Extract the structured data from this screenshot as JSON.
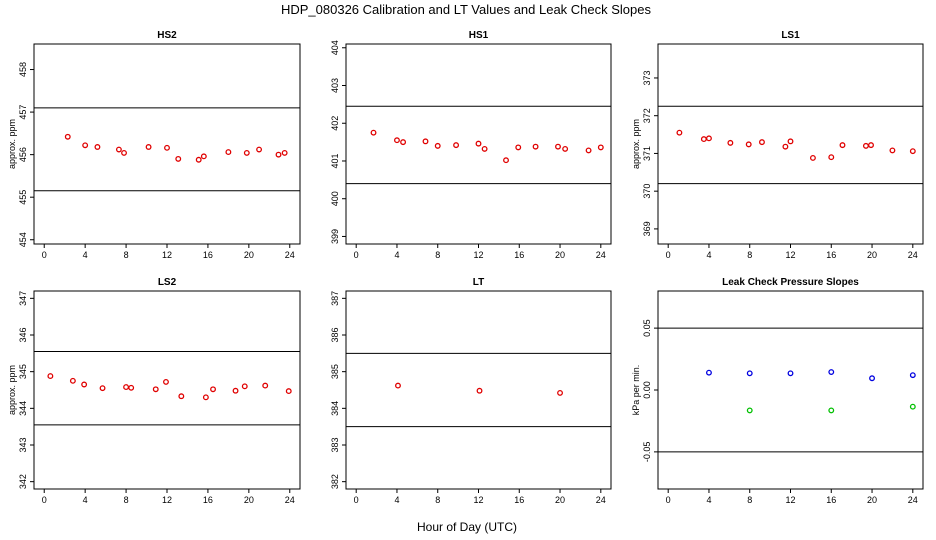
{
  "title": "HDP_080326  Calibration and LT Values and Leak Check Slopes",
  "x_axis_title": "Hour of Day (UTC)",
  "chart_data": [
    {
      "type": "scatter",
      "title": "HS2",
      "ylabel": "approx. ppm",
      "xlim": [
        -1,
        25
      ],
      "ylim": [
        453.9,
        458.6
      ],
      "x_ticks": [
        "0",
        "4",
        "8",
        "12",
        "16",
        "20",
        "24"
      ],
      "y_ticks": [
        "454",
        "455",
        "456",
        "457",
        "458"
      ],
      "reference_lines": [
        457.1,
        455.15
      ],
      "marker_color": "#e00000",
      "series": [
        {
          "x": [
            2.3,
            4.0,
            5.2,
            7.3,
            7.8,
            10.2,
            12.0,
            13.1,
            15.1,
            15.6,
            18.0,
            19.8,
            21.0,
            22.9,
            23.5
          ],
          "y": [
            456.42,
            456.22,
            456.18,
            456.12,
            456.04,
            456.18,
            456.16,
            455.9,
            455.88,
            455.96,
            456.06,
            456.04,
            456.12,
            456.0,
            456.04
          ]
        }
      ]
    },
    {
      "type": "scatter",
      "title": "HS1",
      "ylabel": "",
      "xlim": [
        -1,
        25
      ],
      "ylim": [
        398.8,
        404.1
      ],
      "x_ticks": [
        "0",
        "4",
        "8",
        "12",
        "16",
        "20",
        "24"
      ],
      "y_ticks": [
        "399",
        "400",
        "401",
        "402",
        "403",
        "404"
      ],
      "reference_lines": [
        402.45,
        400.4
      ],
      "marker_color": "#e00000",
      "series": [
        {
          "x": [
            1.7,
            4.0,
            4.6,
            6.8,
            8.0,
            9.8,
            12.0,
            12.6,
            14.7,
            15.9,
            17.6,
            19.8,
            20.5,
            22.8,
            24.0
          ],
          "y": [
            401.75,
            401.55,
            401.5,
            401.52,
            401.4,
            401.42,
            401.46,
            401.32,
            401.02,
            401.36,
            401.38,
            401.38,
            401.32,
            401.28,
            401.36
          ]
        }
      ]
    },
    {
      "type": "scatter",
      "title": "LS1",
      "ylabel": "approx. ppm",
      "xlim": [
        -1,
        25
      ],
      "ylim": [
        368.6,
        373.9
      ],
      "x_ticks": [
        "0",
        "4",
        "8",
        "12",
        "16",
        "20",
        "24"
      ],
      "y_ticks": [
        "369",
        "370",
        "371",
        "372",
        "373"
      ],
      "reference_lines": [
        372.25,
        370.2
      ],
      "marker_color": "#e00000",
      "series": [
        {
          "x": [
            1.1,
            3.5,
            4.0,
            6.1,
            7.9,
            9.2,
            11.5,
            12.0,
            14.2,
            16.0,
            17.1,
            19.4,
            19.9,
            22.0,
            24.0
          ],
          "y": [
            371.55,
            371.38,
            371.4,
            371.28,
            371.24,
            371.3,
            371.18,
            371.32,
            370.88,
            370.9,
            371.22,
            371.2,
            371.22,
            371.08,
            371.06
          ]
        }
      ]
    },
    {
      "type": "scatter",
      "title": "LS2",
      "ylabel": "approx. ppm",
      "xlim": [
        -1,
        25
      ],
      "ylim": [
        341.8,
        347.2
      ],
      "x_ticks": [
        "0",
        "4",
        "8",
        "12",
        "16",
        "20",
        "24"
      ],
      "y_ticks": [
        "342",
        "343",
        "344",
        "345",
        "346",
        "347"
      ],
      "reference_lines": [
        345.55,
        343.55
      ],
      "marker_color": "#e00000",
      "series": [
        {
          "x": [
            0.6,
            2.8,
            3.9,
            5.7,
            8.0,
            8.5,
            10.9,
            11.9,
            13.4,
            15.8,
            16.5,
            18.7,
            19.6,
            21.6,
            23.9
          ],
          "y": [
            344.88,
            344.75,
            344.65,
            344.55,
            344.58,
            344.56,
            344.52,
            344.72,
            344.33,
            344.3,
            344.52,
            344.48,
            344.6,
            344.62,
            344.47
          ]
        }
      ]
    },
    {
      "type": "scatter",
      "title": "LT",
      "ylabel": "",
      "xlim": [
        -1,
        25
      ],
      "ylim": [
        381.8,
        387.2
      ],
      "x_ticks": [
        "0",
        "4",
        "8",
        "12",
        "16",
        "20",
        "24"
      ],
      "y_ticks": [
        "382",
        "383",
        "384",
        "385",
        "386",
        "387"
      ],
      "reference_lines": [
        385.5,
        383.5
      ],
      "marker_color": "#e00000",
      "series": [
        {
          "x": [
            4.1,
            12.1,
            20.0
          ],
          "y": [
            384.62,
            384.48,
            384.42
          ]
        }
      ]
    },
    {
      "type": "scatter",
      "title": "Leak Check Pressure Slopes",
      "ylabel": "kPa per min.",
      "xlim": [
        -1,
        25
      ],
      "ylim": [
        -0.08,
        0.08
      ],
      "x_ticks": [
        "0",
        "4",
        "8",
        "12",
        "16",
        "20",
        "24"
      ],
      "y_ticks": [
        "-0.05",
        "0.00",
        "0.05"
      ],
      "y_tick_values": [
        -0.05,
        0.0,
        0.05
      ],
      "reference_lines": [
        0.05,
        -0.05
      ],
      "series": [
        {
          "color": "#0000e0",
          "x": [
            4.0,
            8.0,
            12.0,
            16.0,
            20.0,
            24.0
          ],
          "y": [
            0.014,
            0.0135,
            0.0135,
            0.0145,
            0.0095,
            0.012
          ]
        },
        {
          "color": "#00c000",
          "x": [
            8.0,
            16.0,
            24.0
          ],
          "y": [
            -0.0165,
            -0.0165,
            -0.0135
          ]
        }
      ]
    }
  ]
}
